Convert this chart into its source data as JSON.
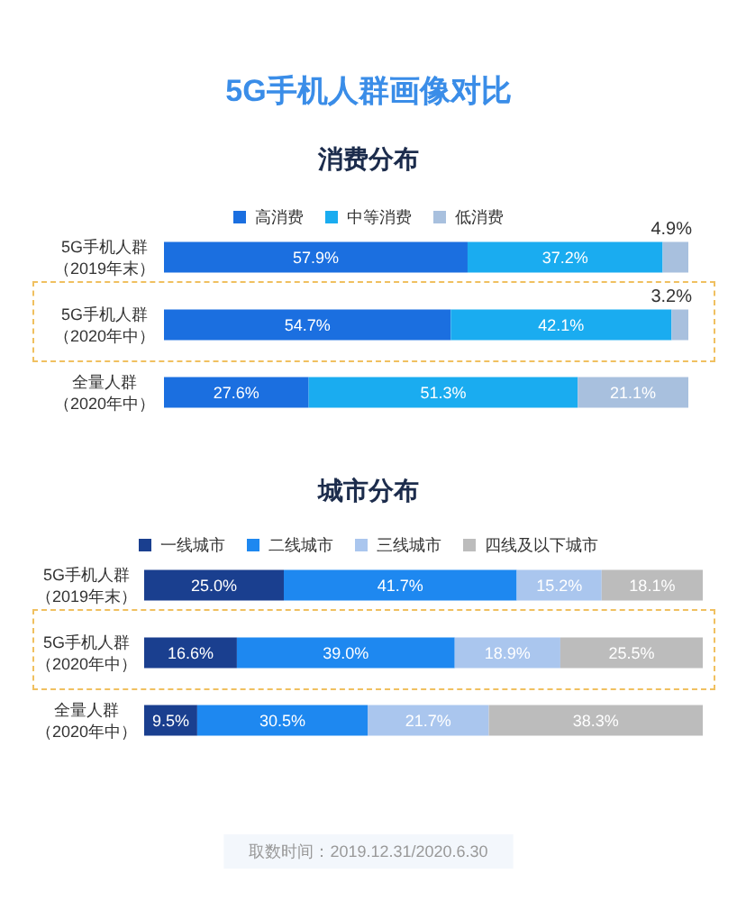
{
  "chart_data": [
    {
      "type": "bar",
      "orientation": "horizontal",
      "stacked": true,
      "title": "5G手机人群画像对比",
      "subtitle": "消费分布",
      "categories": [
        "5G手机人群（2019年末）",
        "5G手机人群（2020年中）",
        "全量人群（2020年中）"
      ],
      "series": [
        {
          "name": "高消费",
          "color": "#1b6fe0",
          "values": [
            57.9,
            54.7,
            27.6
          ],
          "value_labels": [
            "57.9%",
            "54.7%",
            "27.6%"
          ]
        },
        {
          "name": "中等消费",
          "color": "#1aacf0",
          "values": [
            37.2,
            42.1,
            51.3
          ],
          "value_labels": [
            "37.2%",
            "42.1%",
            "51.3%"
          ]
        },
        {
          "name": "低消费",
          "color": "#a8c0de",
          "values": [
            4.9,
            3.2,
            21.1
          ],
          "value_labels": [
            "4.9%",
            "3.2%",
            "21.1%"
          ]
        }
      ],
      "legend": "top",
      "tick_labels": "y",
      "grid": false
    },
    {
      "type": "bar",
      "orientation": "horizontal",
      "stacked": true,
      "title": "城市分布",
      "categories": [
        "5G手机人群（2019年末）",
        "5G手机人群（2020年中）",
        "全量人群（2020年中）"
      ],
      "series": [
        {
          "name": "一线城市",
          "color": "#1a3f8f",
          "values": [
            25.0,
            16.6,
            9.5
          ],
          "value_labels": [
            "25.0%",
            "16.6%",
            "9.5%"
          ]
        },
        {
          "name": "二线城市",
          "color": "#1e88f0",
          "values": [
            41.7,
            39.0,
            30.5
          ],
          "value_labels": [
            "41.7%",
            "39.0%",
            "30.5%"
          ]
        },
        {
          "name": "三线城市",
          "color": "#aac6ee",
          "values": [
            15.2,
            18.9,
            21.7
          ],
          "value_labels": [
            "15.2%",
            "18.9%",
            "21.7%"
          ]
        },
        {
          "name": "四线及以下城市",
          "color": "#bcbcbc",
          "values": [
            18.1,
            25.5,
            38.3
          ],
          "value_labels": [
            "18.1%",
            "25.5%",
            "38.3%"
          ]
        }
      ],
      "legend": "top",
      "tick_labels": "y",
      "grid": false,
      "annotations": [
        "取数时间：2019.12.31/2020.6.30"
      ]
    }
  ]
}
